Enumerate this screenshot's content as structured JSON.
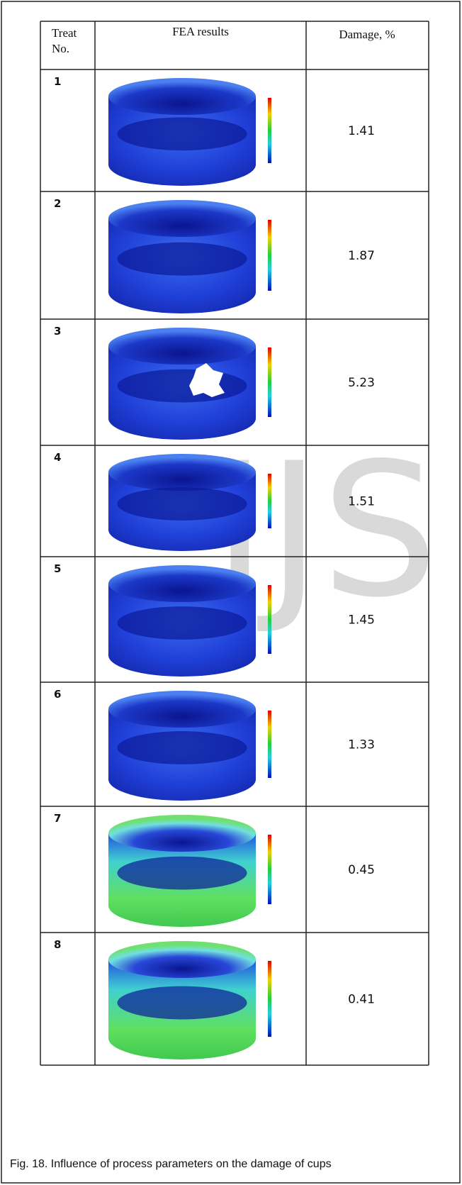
{
  "table": {
    "header": {
      "treat": [
        "Treat",
        "No."
      ],
      "fea": "FEA results",
      "damage": "Damage, %"
    },
    "rows": [
      [
        "1",
        "1.41"
      ],
      [
        "2",
        "1.87"
      ],
      [
        "3",
        "5.23"
      ],
      [
        "4",
        "1.51"
      ],
      [
        "5",
        "1.45"
      ],
      [
        "6",
        "1.33"
      ],
      [
        "7",
        "0.45"
      ],
      [
        "8",
        "0.41"
      ]
    ]
  },
  "watermark": "IJS",
  "caption": "Fig. 18. Influence of process parameters on the damage of cups"
}
